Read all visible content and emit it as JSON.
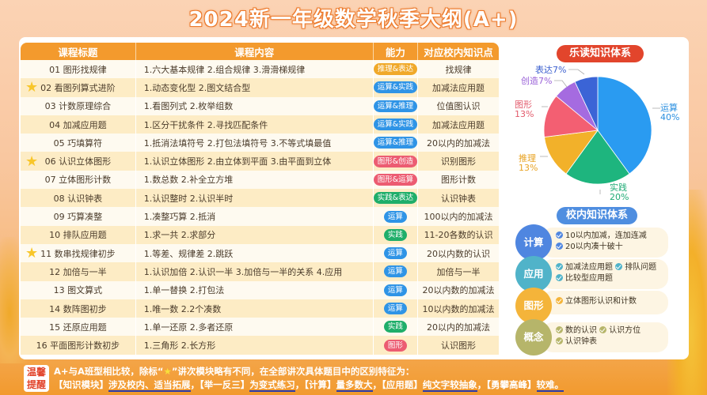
{
  "title": "2024新一年级数学秋季大纲(A+)",
  "table": {
    "headers": [
      "课程标题",
      "课程内容",
      "能力",
      "对应校内知识点"
    ],
    "rows": [
      {
        "title": "01 图形找规律",
        "content": "1.六大基本规律 2.组合规律 3.滑滑梯规律",
        "ability": "推理&表达",
        "ability_color": "#f0a92a",
        "point": "找规律",
        "star": false
      },
      {
        "title": "02 看图列算式进阶",
        "content": "1.动态变化型 2.图文结合型",
        "ability": "运算&实践",
        "ability_color": "#2f94e6",
        "point": "加减法应用题",
        "star": true
      },
      {
        "title": "03 计数原理综合",
        "content": "1.看图列式  2.枚举组数",
        "ability": "运算&推理",
        "ability_color": "#2f94e6",
        "point": "位值图认识",
        "star": false
      },
      {
        "title": "04 加减应用题",
        "content": "1.区分干扰条件  2.寻找匹配条件",
        "ability": "运算&实践",
        "ability_color": "#2f94e6",
        "point": "加减法应用题",
        "star": false
      },
      {
        "title": "05 巧填算符",
        "content": "1.抵消法填符号  2.打包法填符号  3.不等式填最值",
        "ability": "运算&推理",
        "ability_color": "#2f94e6",
        "point": "20以内的加减法",
        "star": false
      },
      {
        "title": "06 认识立体图形",
        "content": "1.认识立体图形  2.由立体到平面  3.由平面到立体",
        "ability": "图形&创造",
        "ability_color": "#ec5c72",
        "point": "识别图形",
        "star": true
      },
      {
        "title": "07 立体图形计数",
        "content": "1.数总数 2.补全立方堆",
        "ability": "图形&运算",
        "ability_color": "#ec5c72",
        "point": "图形计数",
        "star": false
      },
      {
        "title": "08 认识钟表",
        "content": "1.认识整时  2.认识半时",
        "ability": "实践&表达",
        "ability_color": "#1fae6a",
        "point": "认识钟表",
        "star": false
      },
      {
        "title": "09 巧算凑整",
        "content": "1.凑整巧算  2.抵消",
        "ability": "运算",
        "ability_color": "#2f94e6",
        "point": "100以内的加减法",
        "star": false
      },
      {
        "title": "10 排队应用题",
        "content": "1.求一共  2.求部分",
        "ability": "实践",
        "ability_color": "#1fae6a",
        "point": "11-20各数的认识",
        "star": false
      },
      {
        "title": "11 数串找规律初步",
        "content": "1.等差、规律差  2.跳跃",
        "ability": "运算",
        "ability_color": "#2f94e6",
        "point": "20以内数的认识",
        "star": true
      },
      {
        "title": "12 加倍与一半",
        "content": "1.认识加倍  2.认识一半  3.加倍与一半的关系  4.应用",
        "ability": "运算",
        "ability_color": "#2f94e6",
        "point": "加倍与一半",
        "star": false
      },
      {
        "title": "13 图文算式",
        "content": "1.单一替换  2.打包法",
        "ability": "运算",
        "ability_color": "#2f94e6",
        "point": "20以内数的加减法",
        "star": false
      },
      {
        "title": "14 数阵图初步",
        "content": "1.唯一数  2.2个凑数",
        "ability": "运算",
        "ability_color": "#2f94e6",
        "point": "10以内数的加减法",
        "star": false
      },
      {
        "title": "15 还原应用题",
        "content": "1.单一还原  2.多者还原",
        "ability": "实践",
        "ability_color": "#1fae6a",
        "point": "20以内的加减法",
        "star": false
      },
      {
        "title": "16 平面图形计数初步",
        "content": "1.三角形  2.长方形",
        "ability": "图形",
        "ability_color": "#ec5c72",
        "point": "认识图形",
        "star": false
      }
    ]
  },
  "pie_section": {
    "title": "乐读知识体系",
    "title_color": "#e2452c"
  },
  "chart_data": {
    "type": "pie",
    "title": "乐读知识体系",
    "categories": [
      "运算",
      "实践",
      "推理",
      "图形",
      "创造",
      "表达"
    ],
    "values": [
      40,
      20,
      13,
      13,
      7,
      7
    ],
    "labels": [
      "运算 40%",
      "实践 20%",
      "推理 13%",
      "图形 13%",
      "创造7%",
      "表达7%"
    ],
    "colors": [
      "#2a9bf1",
      "#1eb57e",
      "#f2b12a",
      "#f35f72",
      "#a56be0",
      "#3b64d6"
    ]
  },
  "pie_labels": {
    "yunsuan": {
      "name": "运算",
      "pct": "40%"
    },
    "shijian": {
      "name": "实践",
      "pct": "20%"
    },
    "tuili": {
      "name": "推理",
      "pct": "13%"
    },
    "tuxing": {
      "name": "图形",
      "pct": "13%"
    },
    "chuangzao": "创造7%",
    "biaoda": "表达7%"
  },
  "school_section": {
    "title": "校内知识体系",
    "title_color": "#4f8ee0",
    "groups": [
      {
        "name": "计算",
        "color": "#4f86e0",
        "items": [
          "10以内加减，连加连减",
          "20以内凑十破十"
        ]
      },
      {
        "name": "应用",
        "color": "#50b3c9",
        "items": [
          "加减法应用题",
          "排队问题",
          "比较型应用题"
        ]
      },
      {
        "name": "图形",
        "color": "#f4b43a",
        "items": [
          "立体图形认识和计数"
        ]
      },
      {
        "name": "概念",
        "color": "#b6b56a",
        "items": [
          "数的认识",
          "认识方位",
          "认识钟表"
        ]
      }
    ]
  },
  "footer": {
    "tag_line1": "温馨",
    "tag_line2": "提醒",
    "line1_a": "A+与A班型相比较，除标“",
    "line1_star": "★",
    "line1_b": "”讲次模块略有不同，在全部讲次具体题目中的区别特征为：",
    "seg1_label": "【知识模块】",
    "seg1_text": "涉及校内、适当拓展",
    "seg2_label": "，【举一反三】",
    "seg2_text": "为变式练习",
    "seg3_label": "，【计算】",
    "seg3_text": "量多数大",
    "seg4_label": "，【应用题】",
    "seg4_text": "纯文字较抽象",
    "seg5_label": "，【勇攀高峰】",
    "seg5_text": "较难。"
  }
}
